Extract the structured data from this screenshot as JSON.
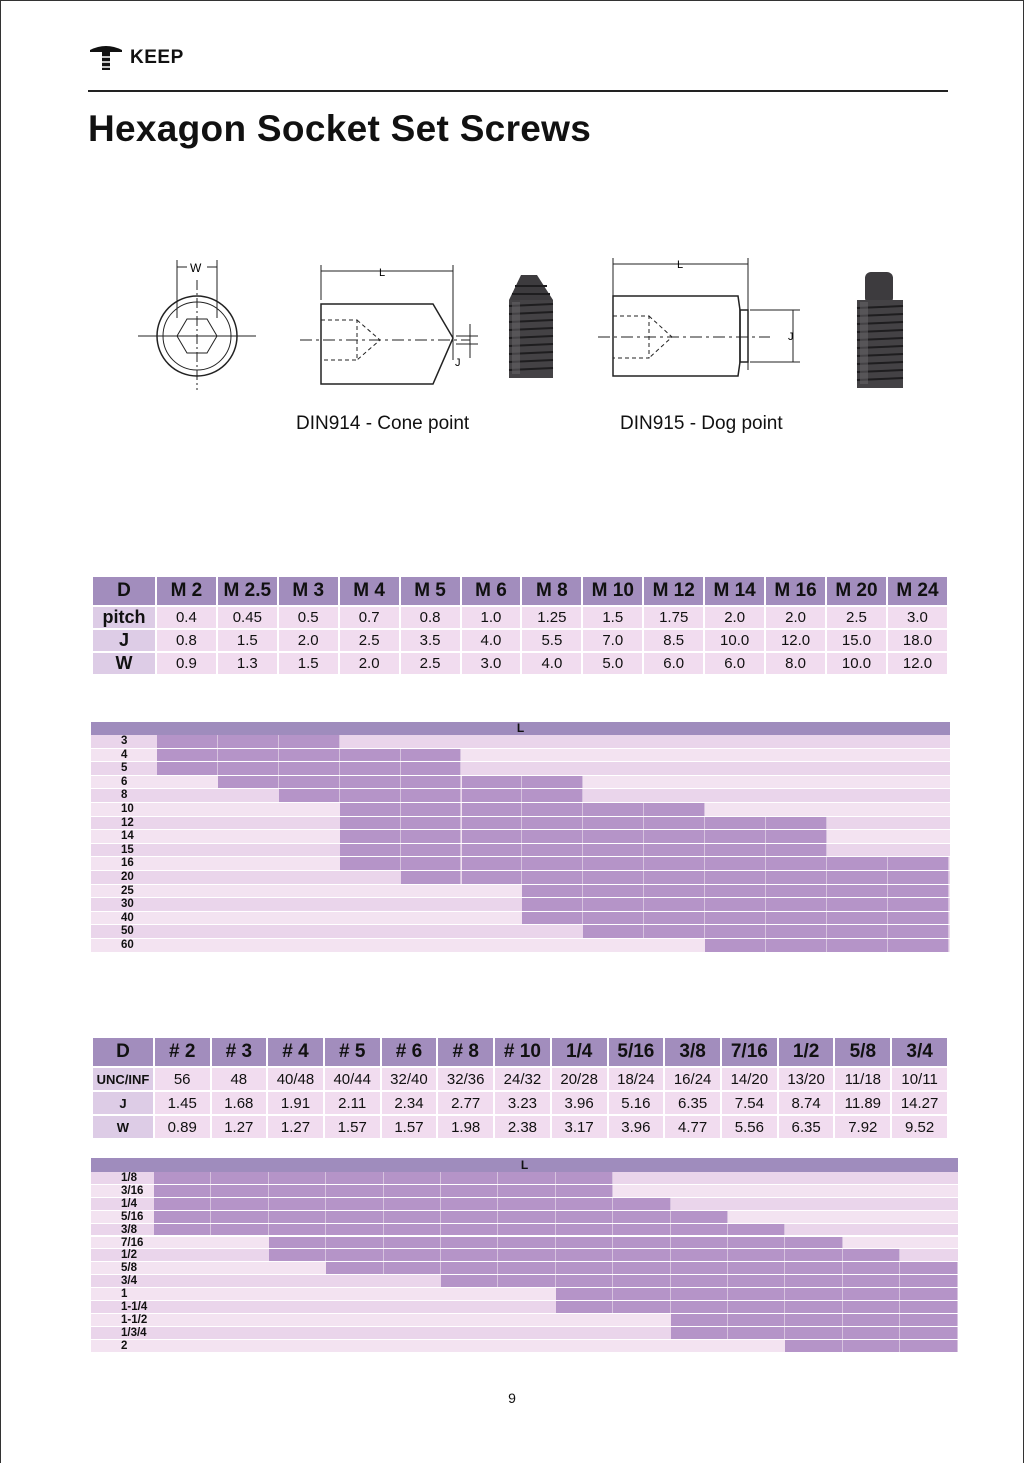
{
  "header": {
    "brand": "KEEP"
  },
  "page_title": "Hexagon Socket Set  Screws",
  "diagrams": {
    "hex_label": "W",
    "length_label": "L",
    "dim_label": "J",
    "cone_caption": "DIN914 - Cone point",
    "dog_caption": "DIN915 - Dog point"
  },
  "metric_table": {
    "header_label": "D",
    "columns": [
      "M 2",
      "M 2.5",
      "M 3",
      "M 4",
      "M 5",
      "M 6",
      "M 8",
      "M 10",
      "M 12",
      "M 14",
      "M 16",
      "M 20",
      "M 24"
    ],
    "rows": [
      {
        "label": "pitch",
        "values": [
          "0.4",
          "0.45",
          "0.5",
          "0.7",
          "0.8",
          "1.0",
          "1.25",
          "1.5",
          "1.75",
          "2.0",
          "2.0",
          "2.5",
          "3.0"
        ]
      },
      {
        "label": "J",
        "values": [
          "0.8",
          "1.5",
          "2.0",
          "2.5",
          "3.5",
          "4.0",
          "5.5",
          "7.0",
          "8.5",
          "10.0",
          "12.0",
          "15.0",
          "18.0"
        ]
      },
      {
        "label": "W",
        "values": [
          "0.9",
          "1.3",
          "1.5",
          "2.0",
          "2.5",
          "3.0",
          "4.0",
          "5.0",
          "6.0",
          "6.0",
          "8.0",
          "10.0",
          "12.0"
        ]
      }
    ]
  },
  "metric_length_grid": {
    "header_label": "L",
    "rows": [
      {
        "label": "3",
        "from": 0,
        "to": 2
      },
      {
        "label": "4",
        "from": 0,
        "to": 4
      },
      {
        "label": "5",
        "from": 0,
        "to": 4
      },
      {
        "label": "6",
        "from": 1,
        "to": 6
      },
      {
        "label": "8",
        "from": 2,
        "to": 6
      },
      {
        "label": "10",
        "from": 3,
        "to": 8
      },
      {
        "label": "12",
        "from": 3,
        "to": 10
      },
      {
        "label": "14",
        "from": 3,
        "to": 10
      },
      {
        "label": "15",
        "from": 3,
        "to": 10
      },
      {
        "label": "16",
        "from": 3,
        "to": 12
      },
      {
        "label": "20",
        "from": 4,
        "to": 12
      },
      {
        "label": "25",
        "from": 6,
        "to": 12
      },
      {
        "label": "30",
        "from": 6,
        "to": 12
      },
      {
        "label": "40",
        "from": 6,
        "to": 12
      },
      {
        "label": "50",
        "from": 7,
        "to": 12
      },
      {
        "label": "60",
        "from": 9,
        "to": 12
      }
    ]
  },
  "inch_table": {
    "header_label": "D",
    "columns": [
      "# 2",
      "# 3",
      "# 4",
      "# 5",
      "# 6",
      "# 8",
      "# 10",
      "1/4",
      "5/16",
      "3/8",
      "7/16",
      "1/2",
      "5/8",
      "3/4"
    ],
    "rows": [
      {
        "label": "UNC/INF",
        "values": [
          "56",
          "48",
          "40/48",
          "40/44",
          "32/40",
          "32/36",
          "24/32",
          "20/28",
          "18/24",
          "16/24",
          "14/20",
          "13/20",
          "11/18",
          "10/11"
        ]
      },
      {
        "label": "J",
        "values": [
          "1.45",
          "1.68",
          "1.91",
          "2.11",
          "2.34",
          "2.77",
          "3.23",
          "3.96",
          "5.16",
          "6.35",
          "7.54",
          "8.74",
          "11.89",
          "14.27"
        ]
      },
      {
        "label": "W",
        "values": [
          "0.89",
          "1.27",
          "1.27",
          "1.57",
          "1.57",
          "1.98",
          "2.38",
          "3.17",
          "3.96",
          "4.77",
          "5.56",
          "6.35",
          "7.92",
          "9.52"
        ]
      }
    ]
  },
  "inch_length_grid": {
    "header_label": "L",
    "rows": [
      {
        "label": "1/8",
        "from": 0,
        "to": 7
      },
      {
        "label": "3/16",
        "from": 0,
        "to": 7
      },
      {
        "label": "1/4",
        "from": 0,
        "to": 8
      },
      {
        "label": "5/16",
        "from": 0,
        "to": 9
      },
      {
        "label": "3/8",
        "from": 0,
        "to": 10
      },
      {
        "label": "7/16",
        "from": 2,
        "to": 11
      },
      {
        "label": "1/2",
        "from": 2,
        "to": 12
      },
      {
        "label": "5/8",
        "from": 3,
        "to": 13
      },
      {
        "label": "3/4",
        "from": 5,
        "to": 13
      },
      {
        "label": "1",
        "from": 7,
        "to": 13
      },
      {
        "label": "1-1/4",
        "from": 7,
        "to": 13
      },
      {
        "label": "1-1/2",
        "from": 9,
        "to": 13
      },
      {
        "label": "1/3/4",
        "from": 9,
        "to": 13
      },
      {
        "label": "2",
        "from": 11,
        "to": 13
      }
    ]
  },
  "page_number": "9",
  "colors": {
    "header": "#a28dbd",
    "row_label": "#ddcce6",
    "cell": "#f1dcef",
    "grid_fill": "#b594c8"
  }
}
